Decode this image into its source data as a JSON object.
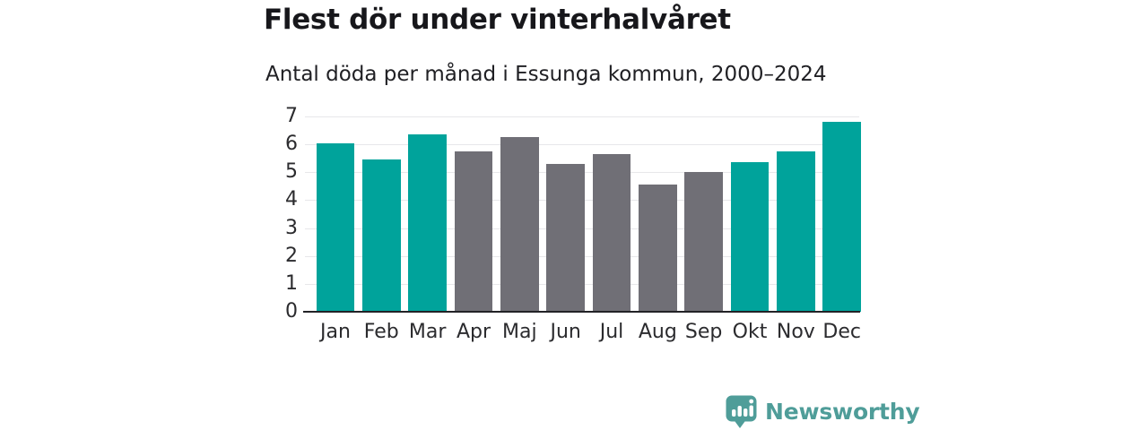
{
  "header": {
    "title": "Flest dör under vinterhalvåret",
    "subtitle": "Antal döda per månad i Essunga kommun, 2000–2024"
  },
  "chart_data": {
    "type": "bar",
    "title": "Flest dör under vinterhalvåret",
    "subtitle": "Antal döda per månad i Essunga kommun, 2000–2024",
    "categories": [
      "Jan",
      "Feb",
      "Mar",
      "Apr",
      "Maj",
      "Jun",
      "Jul",
      "Aug",
      "Sep",
      "Okt",
      "Nov",
      "Dec"
    ],
    "values": [
      6.05,
      5.45,
      6.35,
      5.75,
      6.25,
      5.3,
      5.65,
      4.55,
      5.0,
      5.35,
      5.75,
      6.8
    ],
    "highlight_categories": [
      "Jan",
      "Feb",
      "Mar",
      "Okt",
      "Nov",
      "Dec"
    ],
    "xlabel": "",
    "ylabel": "",
    "ylim": [
      0,
      7
    ],
    "yticks": [
      0,
      1,
      2,
      3,
      4,
      5,
      6,
      7
    ],
    "grid": true,
    "legend": "none",
    "colors": {
      "highlight_bar": "#00a39b",
      "default_bar": "#706f76",
      "gridline": "#e7e7ea",
      "axis_line": "#222226",
      "tick_text": "#2b2b2e"
    }
  },
  "footer": {
    "brand": "Newsworthy",
    "brand_color": "#4f9d99",
    "icon": "newsworthy-speech-bubble-chart-icon"
  }
}
